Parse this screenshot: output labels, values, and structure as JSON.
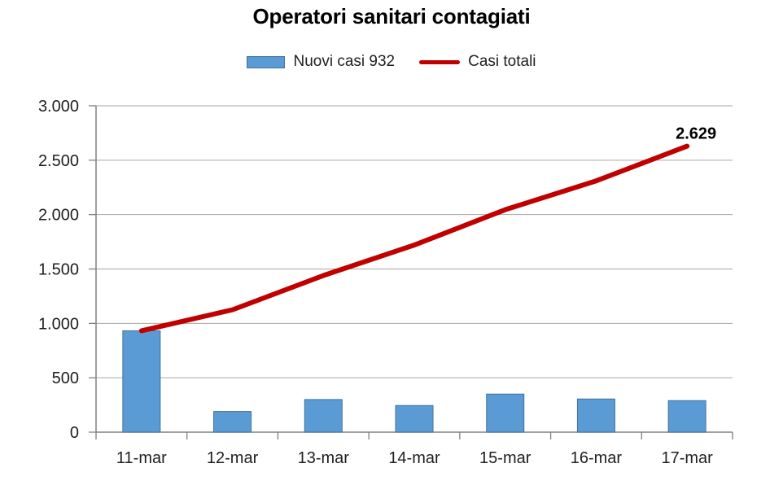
{
  "title": "Operatori sanitari contagiati",
  "colors": {
    "bar_fill": "#5B9BD5",
    "bar_border": "#41719C",
    "line": "#C00000",
    "gridline": "#A6A6A6",
    "axis": "#808080",
    "tick_text": "#1f1f1f",
    "annotation_text": "#000000"
  },
  "chart_data": {
    "type": "bar",
    "subtype": "bar+line combo",
    "title": "Operatori sanitari contagiati",
    "categories": [
      "11-mar",
      "12-mar",
      "13-mar",
      "14-mar",
      "15-mar",
      "16-mar",
      "17-mar"
    ],
    "series": [
      {
        "name": "Nuovi casi 932",
        "type": "bar",
        "color": "#5B9BD5",
        "values": [
          932,
          190,
          300,
          245,
          350,
          305,
          290
        ]
      },
      {
        "name": "Casi totali",
        "type": "line",
        "color": "#C00000",
        "values": [
          932,
          1125,
          1440,
          1720,
          2045,
          2310,
          2629
        ]
      }
    ],
    "xlabel": "",
    "ylabel": "",
    "ylim": [
      0,
      3000
    ],
    "ytick_values": [
      0,
      500,
      1000,
      1500,
      2000,
      2500,
      3000
    ],
    "ytick_labels": [
      "0",
      "500",
      "1.000",
      "1.500",
      "2.000",
      "2.500",
      "3.000"
    ],
    "grid": true,
    "legend_position": "top",
    "annotation": {
      "text": "2.629",
      "series": "Casi totali",
      "category": "17-mar",
      "value": 2629
    }
  }
}
